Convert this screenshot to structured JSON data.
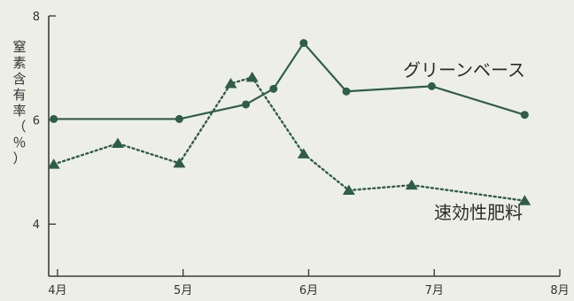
{
  "chart_data": {
    "type": "line",
    "ylabel_chars": [
      "窒",
      "素",
      "含",
      "有",
      "率",
      "（",
      "％",
      "）"
    ],
    "ylim": [
      3,
      8
    ],
    "yticks": [
      {
        "value": 4,
        "label": "4"
      },
      {
        "value": 6,
        "label": "6"
      },
      {
        "value": 8,
        "label": "8"
      }
    ],
    "xlim": [
      3.93,
      8.0
    ],
    "xticks": [
      {
        "value": 4,
        "label": "4月"
      },
      {
        "value": 5,
        "label": "5月"
      },
      {
        "value": 6,
        "label": "6月"
      },
      {
        "value": 7,
        "label": "7月"
      },
      {
        "value": 8,
        "label": "8月"
      }
    ],
    "grid": false,
    "series": [
      {
        "name": "グリーンベース",
        "style": "solid",
        "marker": "circle",
        "color": "#2f5e48",
        "points": [
          {
            "x": 3.97,
            "y": 6.02
          },
          {
            "x": 4.97,
            "y": 6.02
          },
          {
            "x": 5.5,
            "y": 6.3
          },
          {
            "x": 5.72,
            "y": 6.6
          },
          {
            "x": 5.96,
            "y": 7.48
          },
          {
            "x": 6.3,
            "y": 6.55
          },
          {
            "x": 6.98,
            "y": 6.65
          },
          {
            "x": 7.72,
            "y": 6.1
          }
        ]
      },
      {
        "name": "速効性肥料",
        "style": "dotted",
        "marker": "triangle",
        "color": "#2f5e48",
        "points": [
          {
            "x": 3.97,
            "y": 5.15
          },
          {
            "x": 4.48,
            "y": 5.55
          },
          {
            "x": 4.97,
            "y": 5.17
          },
          {
            "x": 5.38,
            "y": 6.7
          },
          {
            "x": 5.55,
            "y": 6.82
          },
          {
            "x": 5.96,
            "y": 5.35
          },
          {
            "x": 6.32,
            "y": 4.65
          },
          {
            "x": 6.82,
            "y": 4.75
          },
          {
            "x": 7.72,
            "y": 4.45
          }
        ]
      }
    ]
  }
}
